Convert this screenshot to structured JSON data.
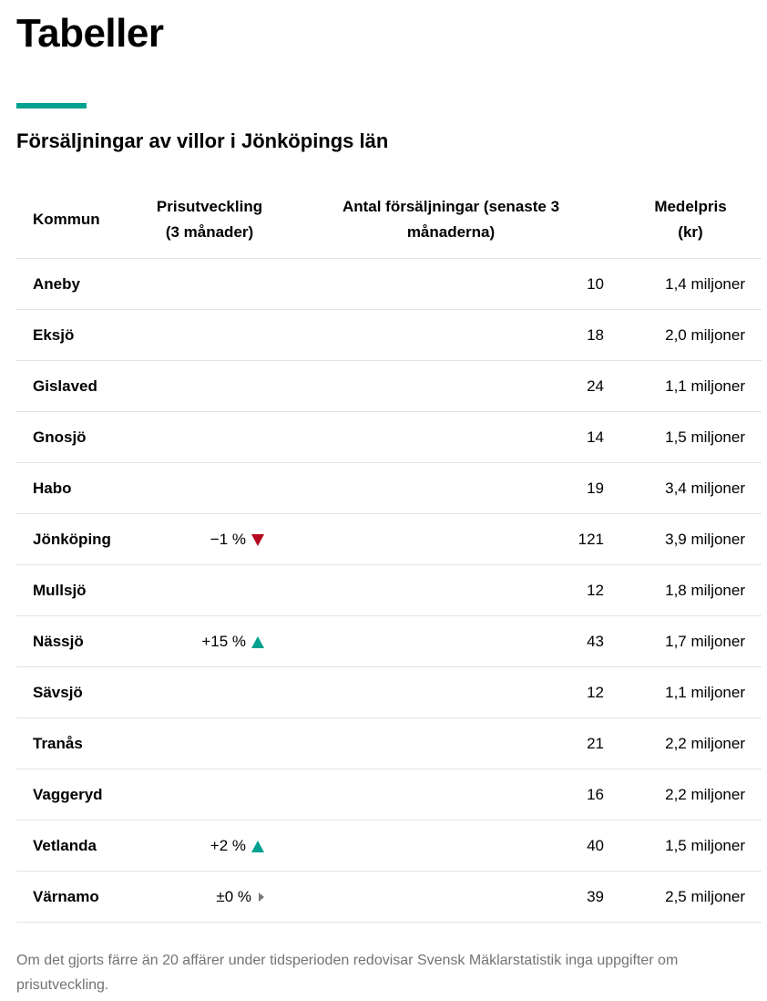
{
  "page_title": "Tabeller",
  "accent_color": "#00a190",
  "table_title": "Försäljningar av villor i Jönköpings län",
  "headers": {
    "kommun": "Kommun",
    "pris": "Prisutveckling (3 månader)",
    "antal": "Antal försäljningar (senaste 3 månaderna)",
    "medel": "Medelpris (kr)"
  },
  "rows": [
    {
      "kommun": "Aneby",
      "pris": "",
      "trend": "",
      "antal": "10",
      "medel": "1,4 miljoner"
    },
    {
      "kommun": "Eksjö",
      "pris": "",
      "trend": "",
      "antal": "18",
      "medel": "2,0 miljoner"
    },
    {
      "kommun": "Gislaved",
      "pris": "",
      "trend": "",
      "antal": "24",
      "medel": "1,1 miljoner"
    },
    {
      "kommun": "Gnosjö",
      "pris": "",
      "trend": "",
      "antal": "14",
      "medel": "1,5 miljoner"
    },
    {
      "kommun": "Habo",
      "pris": "",
      "trend": "",
      "antal": "19",
      "medel": "3,4 miljoner"
    },
    {
      "kommun": "Jönköping",
      "pris": "−1 %",
      "trend": "down",
      "antal": "121",
      "medel": "3,9 miljoner"
    },
    {
      "kommun": "Mullsjö",
      "pris": "",
      "trend": "",
      "antal": "12",
      "medel": "1,8 miljoner"
    },
    {
      "kommun": "Nässjö",
      "pris": "+15 %",
      "trend": "up",
      "antal": "43",
      "medel": "1,7 miljoner"
    },
    {
      "kommun": "Sävsjö",
      "pris": "",
      "trend": "",
      "antal": "12",
      "medel": "1,1 miljoner"
    },
    {
      "kommun": "Tranås",
      "pris": "",
      "trend": "",
      "antal": "21",
      "medel": "2,2 miljoner"
    },
    {
      "kommun": "Vaggeryd",
      "pris": "",
      "trend": "",
      "antal": "16",
      "medel": "2,2 miljoner"
    },
    {
      "kommun": "Vetlanda",
      "pris": "+2 %",
      "trend": "up",
      "antal": "40",
      "medel": "1,5 miljoner"
    },
    {
      "kommun": "Värnamo",
      "pris": "±0 %",
      "trend": "flat",
      "antal": "39",
      "medel": "2,5 miljoner"
    }
  ],
  "footnote": "Om det gjorts färre än 20 affärer under tidsperioden redovisar Svensk Mäklarstatistik inga uppgifter om prisutveckling."
}
